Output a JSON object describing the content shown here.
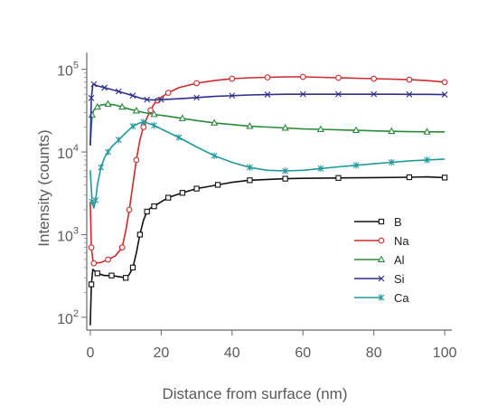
{
  "chart_data": {
    "type": "line",
    "title": "",
    "xlabel": "Distance from surface (nm)",
    "ylabel": "Intensity (counts)",
    "xlim": [
      -1,
      102
    ],
    "ylim": [
      70,
      160000
    ],
    "yscale": "log",
    "grid": false,
    "legend_position": "lower-right",
    "x_ticks": [
      0,
      20,
      40,
      60,
      80,
      100
    ],
    "x_tick_labels": [
      "0",
      "20",
      "40",
      "60",
      "80",
      "100"
    ],
    "y_ticks": [
      100,
      1000,
      10000,
      100000
    ],
    "y_tick_labels": [
      {
        "base": "10",
        "exp": "2"
      },
      {
        "base": "10",
        "exp": "3"
      },
      {
        "base": "10",
        "exp": "4"
      },
      {
        "base": "10",
        "exp": "5"
      }
    ],
    "series": [
      {
        "name": "B",
        "color": "#111111",
        "marker": "square",
        "x": [
          0,
          0.3,
          0.7,
          2,
          4,
          6,
          8,
          10,
          11,
          12,
          13,
          14,
          15,
          16,
          17,
          18,
          20,
          22,
          24,
          26,
          28,
          30,
          33,
          36,
          40,
          45,
          50,
          55,
          60,
          70,
          80,
          90,
          95,
          100
        ],
        "y": [
          80,
          250,
          380,
          340,
          320,
          320,
          310,
          300,
          330,
          400,
          600,
          1000,
          1500,
          1900,
          2100,
          2200,
          2500,
          2800,
          3000,
          3200,
          3400,
          3600,
          3800,
          4000,
          4300,
          4550,
          4650,
          4750,
          4800,
          4850,
          4900,
          4950,
          5000,
          4900
        ]
      },
      {
        "name": "Na",
        "color": "#cc2b2b",
        "marker": "circle",
        "x": [
          0,
          0.3,
          0.7,
          1,
          3,
          5,
          7,
          9,
          10,
          11,
          12,
          13,
          14,
          15,
          16,
          17,
          18,
          19,
          20,
          22,
          25,
          30,
          35,
          40,
          45,
          50,
          55,
          60,
          65,
          70,
          75,
          80,
          85,
          90,
          95,
          100
        ],
        "y": [
          2500,
          700,
          500,
          450,
          460,
          500,
          550,
          700,
          1100,
          2000,
          4000,
          8000,
          14000,
          20000,
          26000,
          32000,
          38000,
          42000,
          46000,
          52000,
          60000,
          68000,
          73000,
          77000,
          79000,
          80000,
          81000,
          81000,
          80000,
          79000,
          78000,
          77000,
          76000,
          75000,
          73000,
          70000
        ]
      },
      {
        "name": "Al",
        "color": "#2a8a3a",
        "marker": "triangle",
        "x": [
          0,
          0.5,
          1,
          2,
          3,
          5,
          7,
          9,
          11,
          13,
          15,
          18,
          22,
          26,
          30,
          35,
          40,
          45,
          50,
          55,
          60,
          65,
          70,
          75,
          80,
          85,
          90,
          95,
          100
        ],
        "y": [
          12000,
          28000,
          32000,
          35000,
          37000,
          38000,
          37000,
          35000,
          33000,
          31500,
          30000,
          28500,
          27000,
          25500,
          24000,
          22500,
          21500,
          20500,
          20000,
          19500,
          19000,
          18800,
          18500,
          18300,
          18000,
          17800,
          17600,
          17500,
          17500
        ]
      },
      {
        "name": "Si",
        "color": "#2e2f8a",
        "marker": "x",
        "x": [
          0,
          0.3,
          0.7,
          1,
          2,
          4,
          6,
          8,
          10,
          12,
          14,
          16,
          18,
          20,
          25,
          30,
          35,
          40,
          45,
          50,
          55,
          60,
          65,
          70,
          75,
          80,
          85,
          90,
          95,
          100
        ],
        "y": [
          12000,
          45000,
          65000,
          66000,
          63000,
          60000,
          57000,
          54000,
          51000,
          48000,
          45000,
          43000,
          42500,
          43000,
          44000,
          45500,
          47000,
          48000,
          49000,
          49500,
          50000,
          50000,
          50000,
          50000,
          50000,
          50000,
          50000,
          49800,
          49800,
          49500
        ]
      },
      {
        "name": "Ca",
        "color": "#1f9a9a",
        "marker": "asterisk",
        "x": [
          0,
          0.5,
          1,
          1.5,
          2,
          3,
          4,
          5,
          6,
          8,
          10,
          12,
          14,
          15,
          16,
          18,
          20,
          25,
          30,
          35,
          40,
          45,
          50,
          55,
          60,
          65,
          70,
          75,
          80,
          85,
          90,
          95,
          100
        ],
        "y": [
          6000,
          2500,
          2100,
          2600,
          4000,
          6500,
          8500,
          10000,
          11500,
          14000,
          17000,
          20500,
          22500,
          23000,
          22500,
          21000,
          19000,
          15000,
          11500,
          9000,
          7500,
          6500,
          6000,
          5900,
          6000,
          6300,
          6600,
          6900,
          7200,
          7500,
          7800,
          8000,
          8200
        ]
      }
    ]
  }
}
